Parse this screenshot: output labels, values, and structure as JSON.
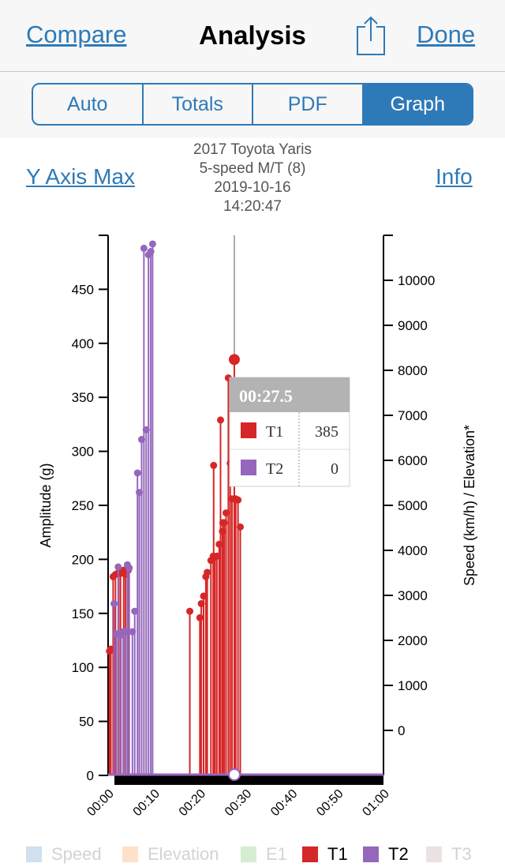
{
  "nav": {
    "back_label": "Compare",
    "title": "Analysis",
    "done_label": "Done"
  },
  "segments": [
    {
      "label": "Auto",
      "active": false
    },
    {
      "label": "Totals",
      "active": false
    },
    {
      "label": "PDF",
      "active": false
    },
    {
      "label": "Graph",
      "active": true
    }
  ],
  "header": {
    "y_axis_max_label": "Y Axis Max",
    "info_label": "Info",
    "vehicle": "2017 Toyota Yaris",
    "transmission": "5-speed M/T (8)",
    "date": "2019-10-16",
    "time": "14:20:47"
  },
  "tooltip": {
    "time": "00:27.5",
    "rows": [
      {
        "name": "T1",
        "value": "385"
      },
      {
        "name": "T2",
        "value": "0"
      }
    ]
  },
  "legend": [
    {
      "name": "Speed",
      "color": "#cfe0ef",
      "enabled": false
    },
    {
      "name": "Elevation",
      "color": "#fde1c8",
      "enabled": false
    },
    {
      "name": "E1",
      "color": "#d6ecd3",
      "enabled": false
    },
    {
      "name": "T1",
      "color": "#d62728",
      "enabled": true
    },
    {
      "name": "T2",
      "color": "#9467bd",
      "enabled": true
    },
    {
      "name": "T3",
      "color": "#ece2e2",
      "enabled": false
    }
  ],
  "chart_data": {
    "type": "scatter",
    "ylabel": "Amplitude (g)",
    "y2label": "Speed (km/h) / Elevation*",
    "ylim": [
      0,
      500
    ],
    "y2lim": [
      -1000,
      11000
    ],
    "xlim_seconds": [
      0,
      60
    ],
    "x_tick_labels": [
      "00:00",
      "00:10",
      "00:20",
      "00:30",
      "00:40",
      "00:50",
      "01:00"
    ],
    "y_ticks": [
      0,
      50,
      100,
      150,
      200,
      250,
      300,
      350,
      400,
      450
    ],
    "y2_ticks": [
      0,
      1000,
      2000,
      3000,
      4000,
      5000,
      6000,
      7000,
      8000,
      9000,
      10000
    ],
    "cursor_x": 27.5,
    "series": [
      {
        "name": "T1",
        "color": "#d62728",
        "points": [
          [
            0.3,
            115
          ],
          [
            0.6,
            117
          ],
          [
            1.1,
            184
          ],
          [
            1.6,
            186
          ],
          [
            2.3,
            188
          ],
          [
            2.7,
            187
          ],
          [
            3.4,
            190
          ],
          [
            3.8,
            186
          ],
          [
            4.4,
            190
          ],
          [
            17.8,
            152
          ],
          [
            20.0,
            146
          ],
          [
            20.3,
            159
          ],
          [
            20.8,
            166
          ],
          [
            21.3,
            184
          ],
          [
            21.6,
            188
          ],
          [
            22.4,
            199
          ],
          [
            22.9,
            203
          ],
          [
            23.3,
            202
          ],
          [
            23.7,
            203
          ],
          [
            24.2,
            214
          ],
          [
            24.5,
            329
          ],
          [
            24.9,
            226
          ],
          [
            25.3,
            234
          ],
          [
            25.7,
            243
          ],
          [
            26.2,
            368
          ],
          [
            26.6,
            289
          ],
          [
            27.0,
            256
          ],
          [
            27.5,
            385
          ],
          [
            27.8,
            256
          ],
          [
            28.3,
            255
          ],
          [
            28.8,
            230
          ],
          [
            23.0,
            287
          ],
          [
            25.0,
            234
          ]
        ]
      },
      {
        "name": "T2",
        "color": "#9467bd",
        "points": [
          [
            1.3,
            159
          ],
          [
            1.8,
            131
          ],
          [
            2.2,
            193
          ],
          [
            2.8,
            130
          ],
          [
            3.3,
            133
          ],
          [
            3.8,
            133
          ],
          [
            4.2,
            195
          ],
          [
            4.6,
            192
          ],
          [
            5.3,
            133
          ],
          [
            5.8,
            152
          ],
          [
            6.4,
            280
          ],
          [
            6.8,
            262
          ],
          [
            7.3,
            311
          ],
          [
            7.8,
            488
          ],
          [
            8.3,
            320
          ],
          [
            8.8,
            482
          ],
          [
            9.3,
            485
          ],
          [
            9.7,
            492
          ]
        ]
      }
    ]
  }
}
